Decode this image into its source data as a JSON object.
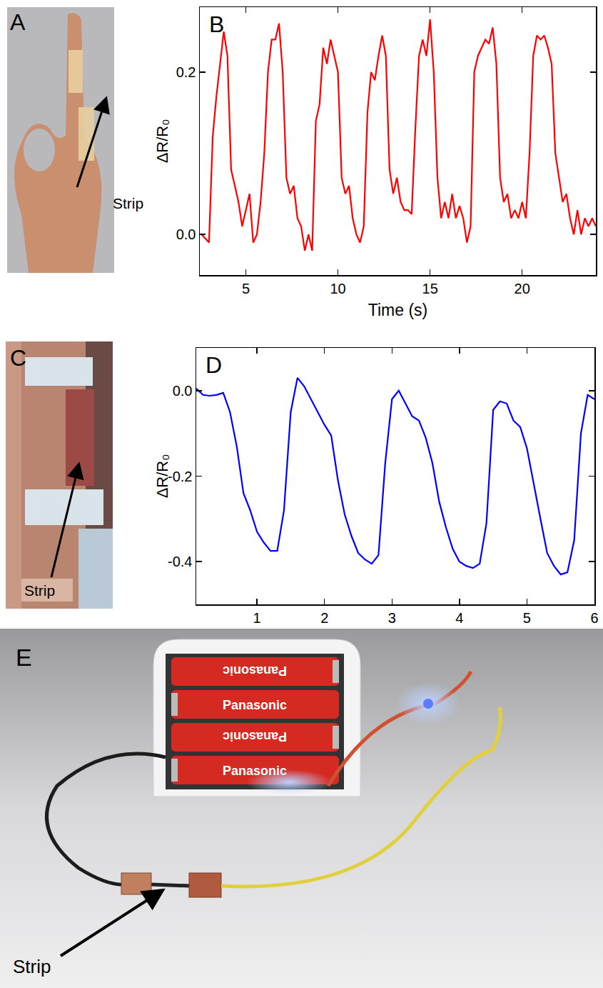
{
  "chart_data": [
    {
      "type": "line",
      "panel_label": "B",
      "x_label": "Time (s)",
      "y_label": "ΔR/R₀",
      "color": "#ff0000",
      "grid": false,
      "xlim": [
        2.5,
        24
      ],
      "xticks": [
        5,
        10,
        15,
        20
      ],
      "ylim": [
        -0.05,
        0.28
      ],
      "yticks": [
        {
          "value": 0,
          "label": "0.0"
        },
        0.2
      ],
      "x": [
        2.6,
        2.8,
        3.0,
        3.2,
        3.4,
        3.6,
        3.8,
        4.0,
        4.2,
        4.4,
        4.6,
        4.8,
        5.0,
        5.2,
        5.4,
        5.6,
        5.8,
        6.0,
        6.2,
        6.4,
        6.6,
        6.8,
        7.0,
        7.2,
        7.4,
        7.6,
        7.8,
        8.0,
        8.2,
        8.4,
        8.6,
        8.8,
        9.0,
        9.2,
        9.4,
        9.6,
        9.8,
        10.0,
        10.2,
        10.4,
        10.6,
        10.8,
        11.0,
        11.2,
        11.4,
        11.6,
        11.8,
        12.0,
        12.2,
        12.4,
        12.6,
        12.8,
        13.0,
        13.2,
        13.4,
        13.6,
        13.8,
        14.0,
        14.2,
        14.4,
        14.6,
        14.8,
        15.0,
        15.2,
        15.4,
        15.6,
        15.8,
        16.0,
        16.2,
        16.4,
        16.6,
        16.8,
        17.0,
        17.2,
        17.4,
        17.6,
        17.8,
        18.0,
        18.2,
        18.4,
        18.6,
        18.8,
        19.0,
        19.2,
        19.4,
        19.6,
        19.8,
        20.0,
        20.2,
        20.4,
        20.6,
        20.8,
        21.0,
        21.2,
        21.4,
        21.6,
        21.8,
        22.0,
        22.2,
        22.4,
        22.6,
        22.8,
        23.0,
        23.2,
        23.4,
        23.6,
        23.8,
        24.0
      ],
      "values": [
        0,
        -0.005,
        -0.01,
        0.12,
        0.17,
        0.21,
        0.25,
        0.22,
        0.08,
        0.06,
        0.04,
        0.01,
        0.03,
        0.05,
        -0.01,
        0.0,
        0.04,
        0.1,
        0.2,
        0.24,
        0.24,
        0.26,
        0.2,
        0.07,
        0.05,
        0.06,
        0.02,
        0.01,
        -0.02,
        0.0,
        -0.02,
        0.14,
        0.16,
        0.23,
        0.21,
        0.24,
        0.22,
        0.2,
        0.07,
        0.05,
        0.06,
        0.02,
        0.0,
        -0.01,
        0.01,
        0.15,
        0.2,
        0.19,
        0.22,
        0.245,
        0.22,
        0.08,
        0.05,
        0.07,
        0.04,
        0.03,
        0.03,
        0.025,
        0.13,
        0.22,
        0.24,
        0.22,
        0.265,
        0.2,
        0.07,
        0.02,
        0.04,
        0.02,
        0.05,
        0.02,
        0.035,
        0.02,
        -0.01,
        0.01,
        0.2,
        0.22,
        0.23,
        0.24,
        0.235,
        0.255,
        0.21,
        0.07,
        0.04,
        0.05,
        0.02,
        0.03,
        0.02,
        0.04,
        0.02,
        0.1,
        0.22,
        0.245,
        0.24,
        0.245,
        0.23,
        0.21,
        0.1,
        0.07,
        0.04,
        0.05,
        0.02,
        0.0,
        0.03,
        0.0,
        0.02,
        0.01,
        0.02,
        0.01
      ]
    },
    {
      "type": "line",
      "panel_label": "D",
      "y_label": "ΔR/R₀",
      "color": "#0000ff",
      "grid": false,
      "xlim": [
        0.1,
        6
      ],
      "xticks": [
        1,
        2,
        3,
        4,
        5,
        6
      ],
      "ylim": [
        -0.5,
        0.1
      ],
      "yticks": [
        {
          "value": 0,
          "label": "0.0"
        },
        -0.2,
        -0.4
      ],
      "x": [
        0.1,
        0.2,
        0.3,
        0.4,
        0.5,
        0.6,
        0.7,
        0.8,
        0.9,
        1.0,
        1.1,
        1.2,
        1.3,
        1.4,
        1.5,
        1.6,
        1.7,
        1.8,
        1.9,
        2.0,
        2.1,
        2.2,
        2.3,
        2.4,
        2.5,
        2.6,
        2.7,
        2.8,
        2.9,
        3.0,
        3.1,
        3.2,
        3.3,
        3.4,
        3.5,
        3.6,
        3.7,
        3.8,
        3.9,
        4.0,
        4.1,
        4.2,
        4.3,
        4.4,
        4.5,
        4.6,
        4.7,
        4.8,
        4.9,
        5.0,
        5.1,
        5.2,
        5.3,
        5.4,
        5.5,
        5.6,
        5.7,
        5.8,
        5.9,
        6.0
      ],
      "values": [
        0.005,
        -0.01,
        -0.012,
        -0.01,
        -0.005,
        -0.05,
        -0.13,
        -0.24,
        -0.28,
        -0.33,
        -0.355,
        -0.375,
        -0.375,
        -0.28,
        -0.05,
        0.03,
        0.01,
        -0.02,
        -0.05,
        -0.08,
        -0.105,
        -0.21,
        -0.29,
        -0.34,
        -0.38,
        -0.395,
        -0.405,
        -0.385,
        -0.17,
        -0.02,
        0.0,
        -0.03,
        -0.06,
        -0.07,
        -0.11,
        -0.17,
        -0.26,
        -0.32,
        -0.37,
        -0.4,
        -0.41,
        -0.415,
        -0.405,
        -0.31,
        -0.045,
        -0.025,
        -0.03,
        -0.07,
        -0.085,
        -0.135,
        -0.22,
        -0.3,
        -0.38,
        -0.41,
        -0.43,
        -0.425,
        -0.35,
        -0.1,
        -0.01,
        -0.02
      ]
    }
  ],
  "photos": {
    "A": {
      "panel_label": "A",
      "callout": "Strip"
    },
    "C": {
      "panel_label": "C",
      "callout": "Strip"
    },
    "E": {
      "panel_label": "E",
      "callout": "Strip",
      "battery_labels": [
        "Panasonic",
        "Panasonic",
        "Panasonic",
        "Panasonic"
      ]
    }
  }
}
